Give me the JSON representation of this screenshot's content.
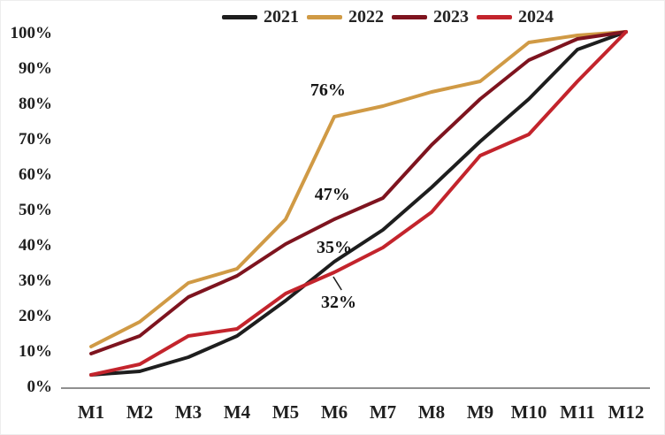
{
  "chart_data": {
    "type": "line",
    "title": "",
    "xlabel": "",
    "ylabel": "",
    "ylim": [
      0,
      100
    ],
    "grid": false,
    "legend_position": "top-center",
    "categories": [
      "M1",
      "M2",
      "M3",
      "M4",
      "M5",
      "M6",
      "M7",
      "M8",
      "M9",
      "M10",
      "M11",
      "M12"
    ],
    "yticks": [
      "0%",
      "10%",
      "20%",
      "30%",
      "40%",
      "50%",
      "60%",
      "70%",
      "80%",
      "90%",
      "100%"
    ],
    "series": [
      {
        "name": "2021",
        "color": "#1e1e1e",
        "values": [
          3,
          4,
          8,
          14,
          24,
          35,
          44,
          56,
          69,
          81,
          95,
          100
        ]
      },
      {
        "name": "2022",
        "color": "#d09a45",
        "values": [
          11,
          18,
          29,
          33,
          47,
          76,
          79,
          83,
          86,
          97,
          99,
          100
        ]
      },
      {
        "name": "2023",
        "color": "#7e141f",
        "values": [
          9,
          14,
          25,
          31,
          40,
          47,
          53,
          68,
          81,
          92,
          98,
          100
        ]
      },
      {
        "name": "2024",
        "color": "#c3242c",
        "values": [
          3,
          6,
          14,
          16,
          26,
          32,
          39,
          49,
          65,
          71,
          86,
          100
        ]
      }
    ],
    "annotations": [
      {
        "text": "76%",
        "series": "2022",
        "month": "M6",
        "xm": 5.87,
        "yp": 83.75
      },
      {
        "text": "47%",
        "series": "2023",
        "month": "M6",
        "xm": 5.96,
        "yp": 54.25
      },
      {
        "text": "35%",
        "series": "2021",
        "month": "M6",
        "xm": 6.0,
        "yp": 39.25
      },
      {
        "text": "32%",
        "series": "2024",
        "month": "M6",
        "xm": 6.09,
        "yp": 23.75,
        "leader": {
          "x1": 5.98,
          "y1": 30.75,
          "x2": 6.15,
          "y2": 27
        }
      }
    ],
    "axis_color": "#8f8f8f"
  }
}
